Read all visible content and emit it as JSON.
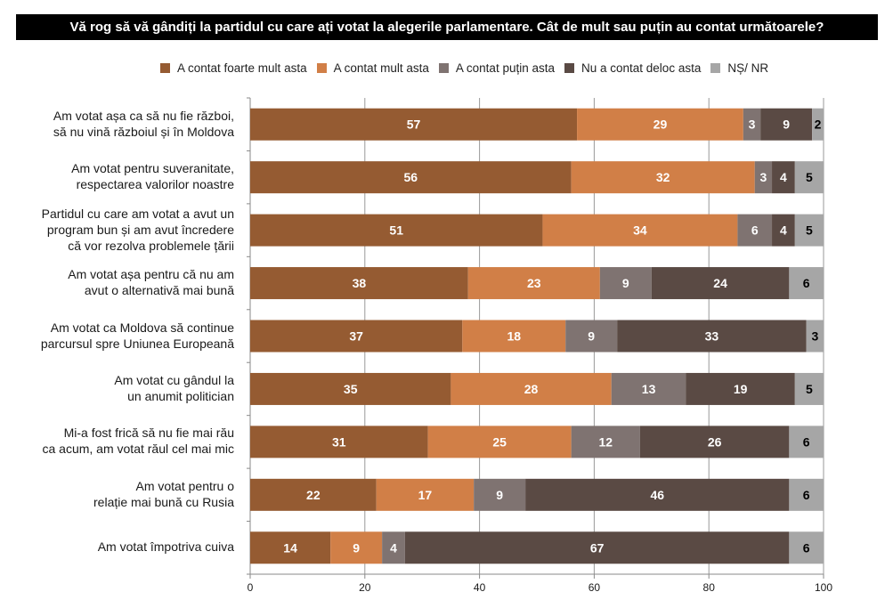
{
  "chart_data": {
    "type": "bar",
    "orientation": "horizontal",
    "stacked": true,
    "title": "Vă rog să vă gândiți la partidul cu care ați votat la alegerile parlamentare. Cât de mult sau puțin au contat următoarele?",
    "xlabel": "",
    "ylabel": "",
    "xlim": [
      0,
      100
    ],
    "xticks": [
      0,
      20,
      40,
      60,
      80,
      100
    ],
    "grid": true,
    "legend_position": "top",
    "categories": [
      [
        "Am votat așa ca să nu fie război,",
        "să nu vină războiul și în Moldova"
      ],
      [
        "Am votat pentru suveranitate,",
        "respectarea valorilor noastre"
      ],
      [
        "Partidul cu care am votat a avut un",
        "program bun și am avut încredere",
        "că vor rezolva problemele țării"
      ],
      [
        "Am votat așa pentru că nu am",
        "avut o alternativă mai bună"
      ],
      [
        "Am votat ca Moldova să continue",
        "parcursul spre Uniunea Europeană"
      ],
      [
        "Am votat cu gândul la",
        "un anumit politician"
      ],
      [
        "Mi-a fost frică să nu fie mai rău",
        "ca acum, am votat răul cel mai mic"
      ],
      [
        "Am votat pentru o",
        "relație mai bună cu Rusia"
      ],
      [
        "Am votat împotriva cuiva"
      ]
    ],
    "series": [
      {
        "name": "A contat foarte mult asta",
        "color": "#955b32",
        "label_color": "#ffffff",
        "values": [
          57,
          56,
          51,
          38,
          37,
          35,
          31,
          22,
          14
        ]
      },
      {
        "name": "A contat mult asta",
        "color": "#d17f47",
        "label_color": "#ffffff",
        "values": [
          29,
          32,
          34,
          23,
          18,
          28,
          25,
          17,
          9
        ]
      },
      {
        "name": "A contat puțin asta",
        "color": "#7f7371",
        "label_color": "#ffffff",
        "values": [
          3,
          3,
          6,
          9,
          9,
          13,
          12,
          9,
          4
        ]
      },
      {
        "name": "Nu a contat deloc asta",
        "color": "#5a4a44",
        "label_color": "#ffffff",
        "values": [
          9,
          4,
          4,
          24,
          33,
          19,
          26,
          46,
          67
        ]
      },
      {
        "name": "NȘ/ NR",
        "color": "#a6a6a6",
        "label_color": "#000000",
        "values": [
          2,
          5,
          5,
          6,
          3,
          5,
          6,
          6,
          6
        ]
      }
    ]
  }
}
